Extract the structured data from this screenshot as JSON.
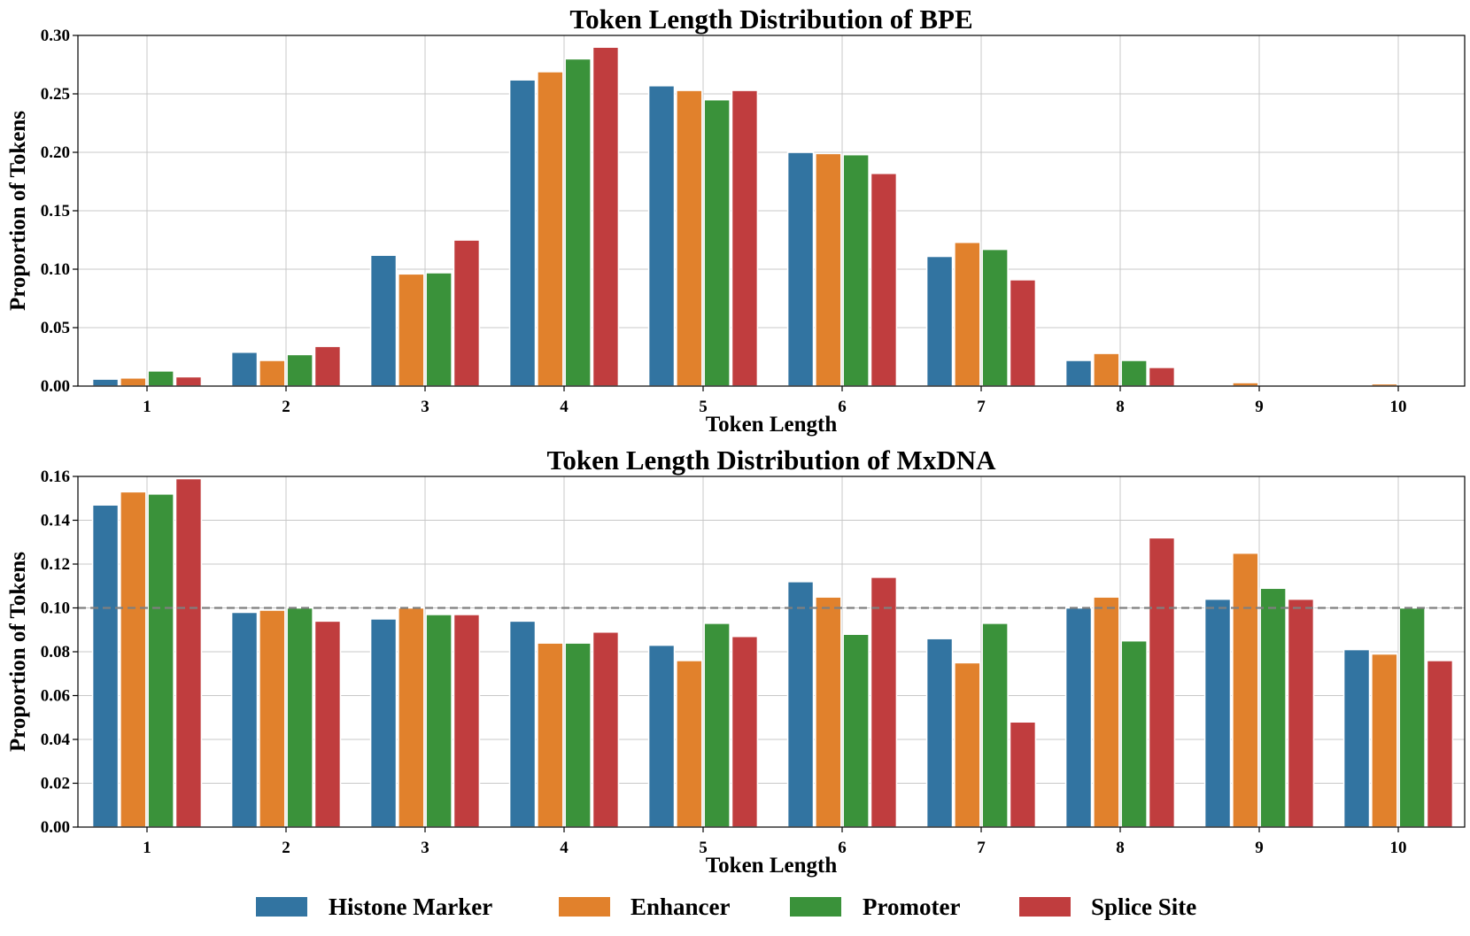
{
  "legend": [
    {
      "name": "Histone Marker",
      "color": "#3274a1"
    },
    {
      "name": "Enhancer",
      "color": "#e1812c"
    },
    {
      "name": "Promoter",
      "color": "#3a923a"
    },
    {
      "name": "Splice Site",
      "color": "#c03d3e"
    }
  ],
  "chart_data": [
    {
      "type": "bar",
      "title": "Token Length Distribution of BPE",
      "xlabel": "Token Length",
      "ylabel": "Proportion of Tokens",
      "categories": [
        "1",
        "2",
        "3",
        "4",
        "5",
        "6",
        "7",
        "8",
        "9",
        "10"
      ],
      "ylim": [
        0,
        0.3
      ],
      "yticks": [
        "0.00",
        "0.05",
        "0.10",
        "0.15",
        "0.20",
        "0.25",
        "0.30"
      ],
      "grid": true,
      "series": [
        {
          "name": "Histone Marker",
          "color": "#3274a1",
          "values": [
            0.006,
            0.029,
            0.112,
            0.262,
            0.257,
            0.2,
            0.111,
            0.022,
            0.001,
            0.0003
          ]
        },
        {
          "name": "Enhancer",
          "color": "#e1812c",
          "values": [
            0.007,
            0.022,
            0.096,
            0.269,
            0.253,
            0.199,
            0.123,
            0.028,
            0.003,
            0.002
          ]
        },
        {
          "name": "Promoter",
          "color": "#3a923a",
          "values": [
            0.013,
            0.027,
            0.097,
            0.28,
            0.245,
            0.198,
            0.117,
            0.022,
            0.001,
            0.0003
          ]
        },
        {
          "name": "Splice Site",
          "color": "#c03d3e",
          "values": [
            0.008,
            0.034,
            0.125,
            0.29,
            0.253,
            0.182,
            0.091,
            0.016,
            0.001,
            0.0003
          ]
        }
      ]
    },
    {
      "type": "bar",
      "title": "Token Length Distribution of MxDNA",
      "xlabel": "Token Length",
      "ylabel": "Proportion of Tokens",
      "categories": [
        "1",
        "2",
        "3",
        "4",
        "5",
        "6",
        "7",
        "8",
        "9",
        "10"
      ],
      "ylim": [
        0,
        0.16
      ],
      "yticks": [
        "0.00",
        "0.02",
        "0.04",
        "0.06",
        "0.08",
        "0.10",
        "0.12",
        "0.14",
        "0.16"
      ],
      "grid": true,
      "reference_line": 0.1,
      "series": [
        {
          "name": "Histone Marker",
          "color": "#3274a1",
          "values": [
            0.147,
            0.098,
            0.095,
            0.094,
            0.083,
            0.112,
            0.086,
            0.1,
            0.104,
            0.081
          ]
        },
        {
          "name": "Enhancer",
          "color": "#e1812c",
          "values": [
            0.153,
            0.099,
            0.1,
            0.084,
            0.076,
            0.105,
            0.075,
            0.105,
            0.125,
            0.079
          ]
        },
        {
          "name": "Promoter",
          "color": "#3a923a",
          "values": [
            0.152,
            0.1,
            0.097,
            0.084,
            0.093,
            0.088,
            0.093,
            0.085,
            0.109,
            0.1
          ]
        },
        {
          "name": "Splice Site",
          "color": "#c03d3e",
          "values": [
            0.159,
            0.094,
            0.097,
            0.089,
            0.087,
            0.114,
            0.048,
            0.132,
            0.104,
            0.076
          ]
        }
      ]
    }
  ]
}
